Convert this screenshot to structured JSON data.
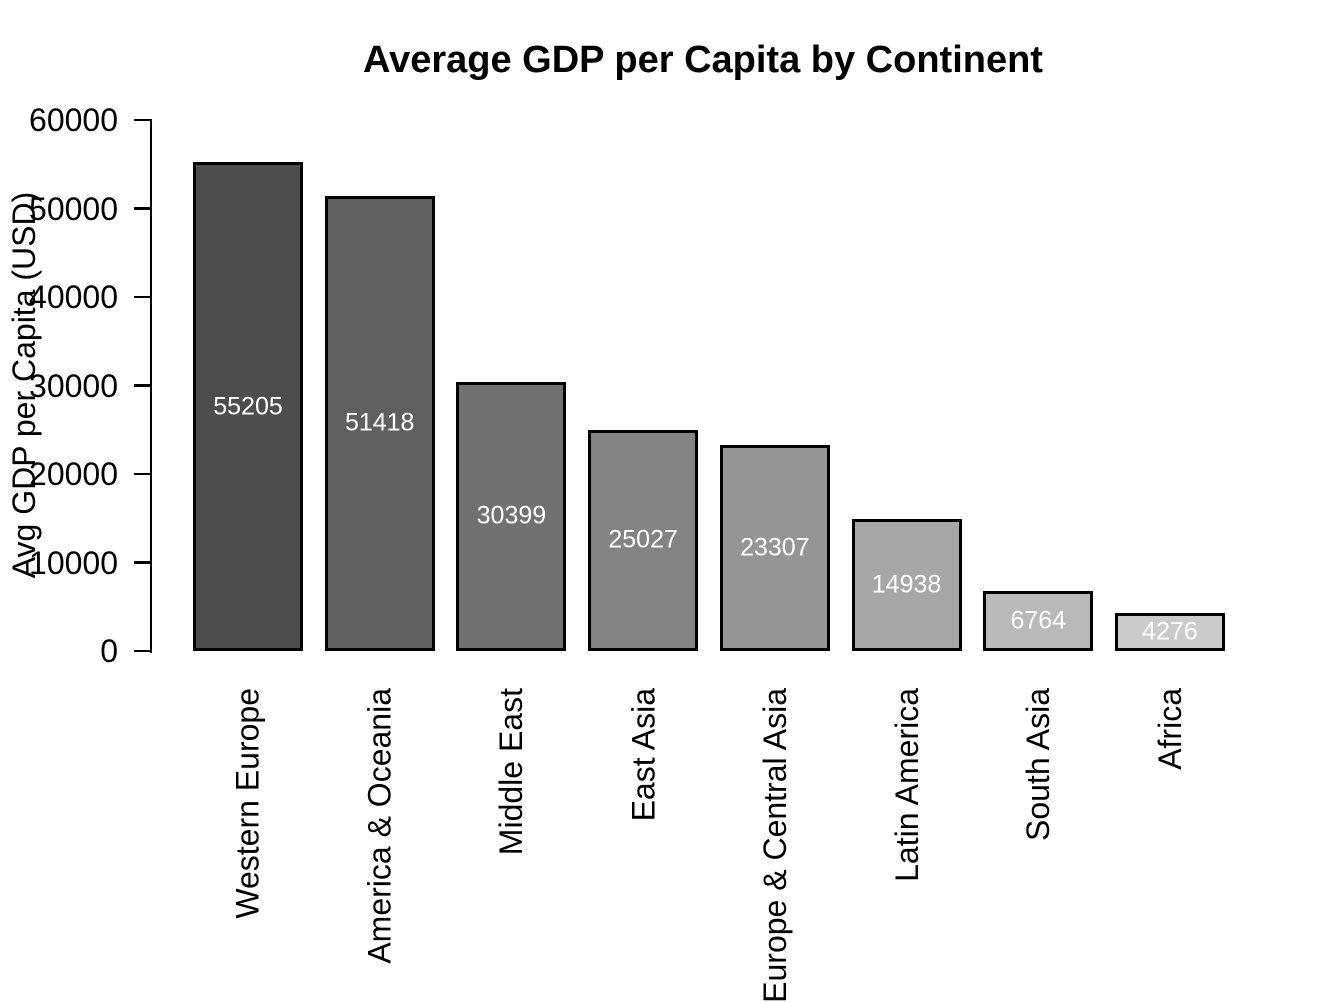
{
  "chart_data": {
    "type": "bar",
    "title": "Average GDP per Capita by Continent",
    "xlabel": "",
    "ylabel": "Avg GDP per Capita (USD)",
    "categories": [
      "Western Europe",
      "America & Oceania",
      "Middle East",
      "East Asia",
      "Europe & Central Asia",
      "Latin America",
      "South Asia",
      "Africa"
    ],
    "values": [
      55205,
      51418,
      30399,
      25027,
      23307,
      14938,
      6764,
      4276
    ],
    "bar_labels": [
      "55205",
      "51418",
      "30399",
      "25027",
      "23307",
      "14938",
      "6764",
      "4276"
    ],
    "ylim": [
      0,
      60000
    ],
    "ytick_values": [
      0,
      10000,
      20000,
      30000,
      40000,
      50000,
      60000
    ],
    "ytick_labels": [
      "0",
      "10000",
      "20000",
      "30000",
      "40000",
      "50000",
      "60000"
    ],
    "grid": false,
    "legend_position": "none",
    "bar_colors": [
      "#4D4D4D",
      "#5F5F5F",
      "#717171",
      "#838383",
      "#959595",
      "#A7A7A7",
      "#B9B9B9",
      "#CBCBCB"
    ],
    "bar_border_color": "#000000",
    "value_label_color": "#FFFFFF",
    "axis_color": "#000000",
    "text_color": "#000000",
    "background_color": "#FFFFFF"
  }
}
